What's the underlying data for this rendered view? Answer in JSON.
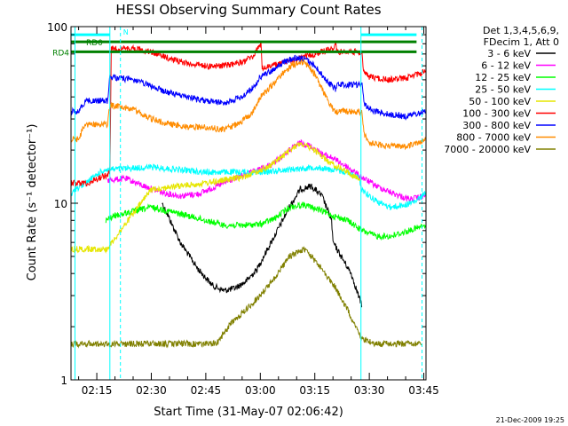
{
  "chart_data": {
    "type": "line",
    "title": "HESSI Observing Summary Count Rates",
    "xlabel": "Start Time (31-May-07 02:06:42)",
    "ylabel": "Count Rate (s⁻¹ detector⁻¹)",
    "x_unit": "minutes after 02:00 UT",
    "xlim": [
      7.9,
      105.6
    ],
    "ylim": [
      1,
      100
    ],
    "y_scale": "log",
    "grid": false,
    "x_ticks": [
      {
        "value": 15,
        "label": "02:15"
      },
      {
        "value": 30,
        "label": "02:30"
      },
      {
        "value": 45,
        "label": "02:45"
      },
      {
        "value": 60,
        "label": "03:00"
      },
      {
        "value": 75,
        "label": "03:15"
      },
      {
        "value": 90,
        "label": "03:30"
      },
      {
        "value": 105,
        "label": "03:45"
      }
    ],
    "y_ticks": [
      {
        "value": 1,
        "label": "1"
      },
      {
        "value": 10,
        "label": "10"
      },
      {
        "value": 100,
        "label": "100"
      }
    ],
    "legend": {
      "placement": "right",
      "header": [
        "Det 1,3,4,5,6,9,",
        "FDecim 1, Att 0"
      ]
    },
    "series": [
      {
        "name": "3 - 6 keV",
        "color": "#000000",
        "x": [
          33,
          38,
          43,
          47,
          50,
          53,
          56,
          59,
          62,
          65,
          68,
          71,
          74,
          77,
          79.6,
          80,
          85,
          88
        ],
        "y": [
          10.0,
          6.0,
          4.2,
          3.4,
          3.2,
          3.3,
          3.6,
          4.2,
          5.5,
          7.2,
          9.5,
          12.0,
          12.5,
          11.0,
          8.0,
          6.0,
          4.0,
          2.6
        ]
      },
      {
        "name": "6 - 12 keV",
        "color": "#ff00ff",
        "x": [
          18,
          23,
          28,
          33,
          38,
          43,
          48,
          53,
          58,
          63,
          68,
          71,
          74,
          77,
          80,
          84,
          88,
          92,
          96,
          101,
          105.5
        ],
        "y": [
          13.5,
          13.8,
          12.5,
          11.5,
          11.0,
          11.3,
          12.5,
          13.8,
          15.0,
          16.5,
          20.0,
          22.0,
          21.0,
          19.0,
          18.0,
          16.0,
          14.0,
          12.5,
          11.5,
          10.5,
          11.0
        ]
      },
      {
        "name": "12 - 25 keV",
        "color": "#00ff00",
        "x": [
          17.5,
          20,
          25,
          30,
          35,
          40,
          45,
          50,
          55,
          60,
          64,
          68,
          72,
          76,
          80,
          84,
          88,
          92,
          96,
          101,
          105.5
        ],
        "y": [
          8.0,
          8.5,
          9.0,
          9.5,
          9.0,
          8.5,
          8.0,
          7.5,
          7.5,
          7.6,
          8.2,
          9.5,
          9.8,
          9.2,
          8.5,
          8.0,
          7.0,
          6.5,
          6.5,
          7.0,
          7.5
        ]
      },
      {
        "name": "25 - 50 keV",
        "color": "#00ffff",
        "x": [
          8,
          9,
          10.5,
          12,
          14,
          16,
          17.5,
          30,
          45,
          60,
          75,
          84,
          87,
          88,
          90,
          93,
          96,
          100,
          103,
          105.5
        ],
        "y": [
          11.0,
          12.0,
          12.5,
          13.0,
          14.0,
          15.0,
          15.5,
          16.0,
          15.0,
          15.0,
          16.0,
          15.0,
          14.0,
          12.0,
          11.0,
          10.0,
          9.5,
          9.8,
          10.3,
          11.5
        ]
      },
      {
        "name": "50 - 100 keV",
        "color": "#e6e600",
        "x": [
          8,
          10,
          13,
          16,
          17.8,
          30,
          45,
          55,
          62,
          67,
          71,
          75,
          79,
          84,
          87.5
        ],
        "y": [
          5.5,
          5.5,
          5.5,
          5.5,
          5.5,
          12.0,
          13.0,
          14.0,
          16.0,
          19.0,
          22.0,
          20.0,
          17.0,
          15.0,
          13.5
        ]
      },
      {
        "name": "100 - 300 keV",
        "color": "#ff0000",
        "x": [
          8,
          11,
          13.5,
          14,
          18,
          18.6,
          19,
          25,
          30,
          35,
          40,
          45,
          50,
          55,
          58,
          60.2,
          60.5,
          63,
          67,
          71,
          75,
          79,
          80.8,
          81,
          85,
          88,
          88.4,
          90,
          95,
          100,
          105.5
        ],
        "y": [
          13.0,
          13.0,
          13.0,
          13.5,
          14.5,
          15.0,
          75.0,
          75.0,
          72.0,
          66.0,
          62.0,
          60.0,
          60.0,
          63.0,
          68.0,
          80.0,
          58.0,
          60.0,
          63.0,
          66.0,
          70.0,
          74.0,
          78.0,
          72.0,
          72.0,
          72.0,
          55.0,
          52.0,
          50.0,
          51.0,
          56.0
        ]
      },
      {
        "name": "300 - 800 keV",
        "color": "#0000ff",
        "x": [
          8,
          10,
          11,
          12,
          14,
          16,
          18,
          18.6,
          25,
          30,
          35,
          40,
          45,
          50,
          55,
          58,
          60,
          63,
          66,
          69,
          72,
          75,
          78,
          80.8,
          81,
          85,
          88,
          88.5,
          90,
          95,
          100,
          105.5
        ],
        "y": [
          33.0,
          33.0,
          36.0,
          38.0,
          38.0,
          38.0,
          38.0,
          52.0,
          50.0,
          46.0,
          42.0,
          40.0,
          38.0,
          37.0,
          40.0,
          45.0,
          52.0,
          56.0,
          62.0,
          66.0,
          66.0,
          60.0,
          50.0,
          44.0,
          47.0,
          47.0,
          47.0,
          37.0,
          34.0,
          32.0,
          31.0,
          33.0
        ]
      },
      {
        "name": "800 - 7000 keV",
        "color": "#ff8c00",
        "x": [
          8,
          10,
          11,
          12,
          14,
          16,
          18,
          18.6,
          25,
          30,
          35,
          40,
          45,
          50,
          55,
          58,
          60,
          63,
          66,
          69,
          72,
          75,
          78,
          80.8,
          81,
          85,
          88,
          88.5,
          90,
          95,
          100,
          105.5
        ],
        "y": [
          23.0,
          23.0,
          26.0,
          28.0,
          28.0,
          28.0,
          28.0,
          36.0,
          34.0,
          30.0,
          28.0,
          27.0,
          27.0,
          26.0,
          29.0,
          33.0,
          40.0,
          46.0,
          54.0,
          61.0,
          63.0,
          54.0,
          40.0,
          32.0,
          33.0,
          33.0,
          33.0,
          25.0,
          22.0,
          21.0,
          21.0,
          23.0
        ]
      },
      {
        "name": "7000 - 20000 keV",
        "color": "#808000",
        "x": [
          8,
          12,
          15,
          18,
          25,
          33,
          40,
          48,
          52,
          56,
          60,
          64,
          68,
          72,
          76,
          80,
          84,
          88,
          92,
          96,
          100,
          104.5
        ],
        "y": [
          1.6,
          1.6,
          1.6,
          1.6,
          1.6,
          1.6,
          1.6,
          1.6,
          2.1,
          2.5,
          3.0,
          3.8,
          5.0,
          5.5,
          4.5,
          3.5,
          2.5,
          1.7,
          1.6,
          1.6,
          1.6,
          1.6
        ]
      }
    ],
    "attenuator_bars": [
      {
        "label": "RD0",
        "color": "#008000",
        "y": 82,
        "x_start": 8,
        "x_end": 103
      },
      {
        "label": "RD4",
        "color": "#008000",
        "y": 72,
        "x_start": 8,
        "x_end": 103
      }
    ],
    "n_bar": {
      "label": "N",
      "color": "#00ffff",
      "y": 90,
      "x_start": 8,
      "x_end": 18.6,
      "x2_start": 87.7,
      "x2_end": 103
    },
    "markers": {
      "color": "#00ffff",
      "solid_x": [
        9,
        18.6,
        87.7
      ],
      "dashed_x": [
        21.5,
        104.5
      ]
    },
    "timestamp": "21-Dec-2009 19:25"
  }
}
